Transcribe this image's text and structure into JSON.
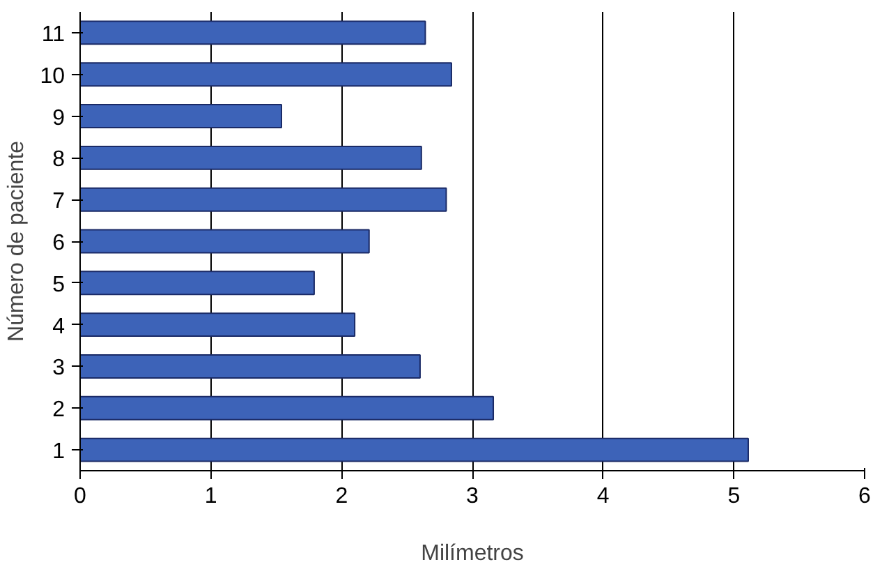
{
  "chart_data": {
    "type": "bar",
    "orientation": "horizontal",
    "categories": [
      "11",
      "10",
      "9",
      "8",
      "7",
      "6",
      "5",
      "4",
      "3",
      "2",
      "1"
    ],
    "values": [
      2.64,
      2.84,
      1.54,
      2.61,
      2.8,
      2.21,
      1.79,
      2.1,
      2.6,
      3.16,
      5.11
    ],
    "color": "#3d63b8",
    "xlim": [
      0,
      6
    ],
    "xticks": [
      0,
      1,
      2,
      3,
      4,
      5,
      6
    ],
    "xlabel": "Milímetros",
    "ylabel": "Número de paciente",
    "grid": "x"
  }
}
